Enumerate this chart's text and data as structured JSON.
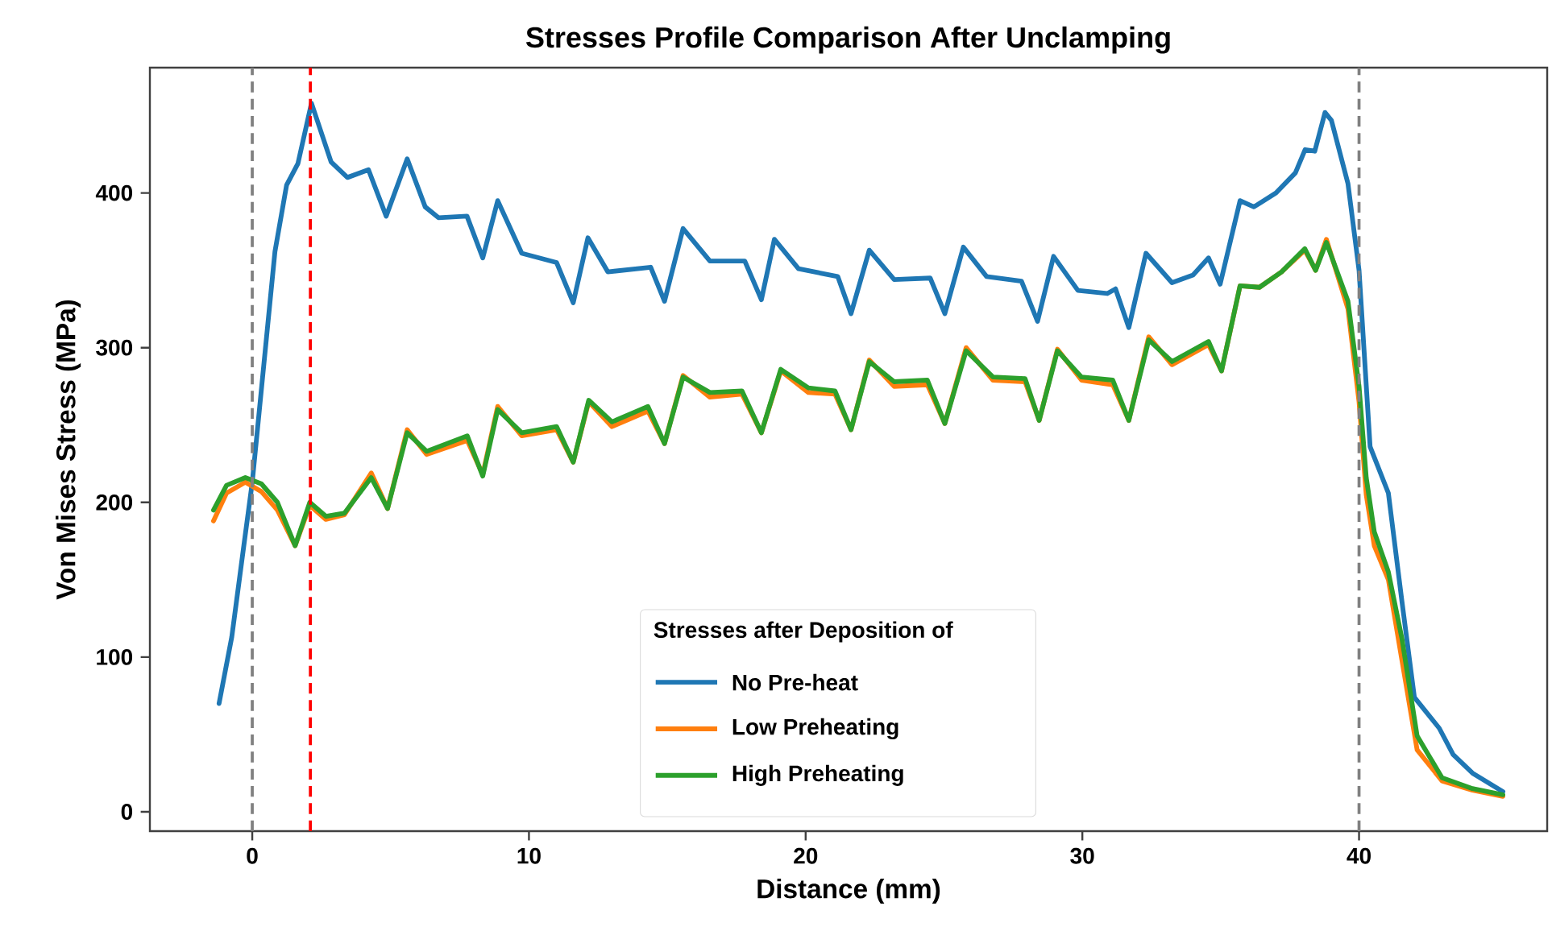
{
  "chart_data": {
    "type": "line",
    "title": "Stresses Profile Comparison After Unclamping",
    "xlabel": "Distance (mm)",
    "ylabel": "Von Mises Stress (MPa)",
    "legend_title": "Stresses after Deposition of",
    "legend": "bottom",
    "grid": false,
    "marker": "none",
    "line_style": "solid",
    "xlim": [
      -3.7,
      46.8
    ],
    "ylim": [
      -12.5,
      481
    ],
    "xticks": [
      0,
      10,
      20,
      30,
      40
    ],
    "yticks": [
      0,
      100,
      200,
      300,
      400
    ],
    "ref_lines": [
      {
        "axis": "x",
        "value": 0,
        "color": "#808080",
        "line_style": "dashed"
      },
      {
        "axis": "x",
        "value": 40,
        "color": "#808080",
        "line_style": "dashed"
      },
      {
        "axis": "x",
        "value": 2.1,
        "color": "#ff0000",
        "line_style": "dashed"
      }
    ],
    "series": [
      {
        "name": "No Pre-heat",
        "color": "#1f77b4",
        "x": [
          -1.2,
          -0.74,
          -0.29,
          0,
          0.82,
          1.24,
          1.65,
          2.14,
          2.85,
          3.44,
          4.2,
          4.84,
          5.6,
          6.25,
          6.73,
          7.76,
          8.33,
          8.87,
          9.74,
          11.0,
          11.6,
          12.13,
          12.85,
          14.4,
          14.9,
          15.57,
          16.54,
          17.8,
          18.4,
          18.87,
          19.74,
          21.16,
          21.64,
          22.3,
          23.2,
          24.5,
          25.03,
          25.7,
          26.54,
          27.8,
          28.38,
          28.96,
          29.84,
          30.9,
          31.2,
          31.68,
          32.3,
          33.24,
          34.0,
          34.56,
          34.98,
          35.7,
          36.2,
          37.0,
          37.7,
          38.05,
          38.4,
          38.77,
          39.0,
          39.6,
          40.0,
          40.4,
          41.06,
          41.55,
          42.0,
          42.9,
          43.4,
          44.1,
          45.2
        ],
        "values": [
          70,
          113,
          174,
          213,
          362,
          405,
          419,
          458,
          420,
          410,
          415,
          385,
          422,
          391,
          384,
          385,
          358,
          395,
          361,
          355,
          329,
          371,
          349,
          352,
          330,
          377,
          356,
          356,
          331,
          370,
          351,
          346,
          322,
          363,
          344,
          345,
          322,
          365,
          346,
          343,
          317,
          359,
          337,
          335,
          338,
          313,
          361,
          342,
          347,
          358,
          341,
          395,
          391,
          400,
          413,
          428,
          427,
          452,
          447,
          406,
          350,
          236,
          206,
          136,
          74,
          54,
          37,
          25,
          13
        ]
      },
      {
        "name": "Low Preheating",
        "color": "#ff7f0e",
        "x": [
          -1.4,
          -0.93,
          -0.25,
          0.33,
          0.91,
          1.55,
          2.08,
          2.66,
          3.33,
          4.3,
          4.89,
          5.6,
          6.3,
          7.77,
          8.33,
          8.87,
          9.74,
          11.0,
          11.6,
          12.16,
          13.0,
          14.3,
          14.9,
          15.57,
          16.54,
          17.7,
          18.4,
          19.1,
          20.1,
          21.06,
          21.64,
          22.3,
          23.2,
          24.4,
          25.03,
          25.8,
          26.77,
          27.93,
          28.44,
          29.1,
          29.97,
          31.1,
          31.68,
          32.4,
          33.24,
          34.56,
          35.03,
          35.7,
          36.4,
          37.2,
          38.04,
          38.43,
          38.82,
          39.6,
          40.0,
          40.26,
          40.55,
          41.06,
          41.55,
          42.1,
          43.0,
          44.1,
          45.2
        ],
        "values": [
          188,
          206,
          213,
          207,
          195,
          172,
          198,
          189,
          192,
          219,
          196,
          247,
          231,
          240,
          218,
          262,
          243,
          247,
          226,
          265,
          249,
          259,
          238,
          282,
          268,
          270,
          245,
          285,
          271,
          270,
          247,
          292,
          275,
          276,
          251,
          300,
          279,
          278,
          253,
          299,
          279,
          276,
          253,
          307,
          289,
          302,
          285,
          340,
          339,
          349,
          363,
          350,
          370,
          325,
          265,
          205,
          172,
          150,
          98,
          40,
          20,
          14,
          10
        ]
      },
      {
        "name": "High Preheating",
        "color": "#2ca02c",
        "x": [
          -1.4,
          -0.93,
          -0.25,
          0.33,
          0.91,
          1.55,
          2.08,
          2.66,
          3.33,
          4.3,
          4.89,
          5.6,
          6.3,
          7.77,
          8.33,
          8.87,
          9.74,
          11.0,
          11.6,
          12.16,
          13.0,
          14.3,
          14.9,
          15.57,
          16.54,
          17.7,
          18.4,
          19.1,
          20.1,
          21.06,
          21.64,
          22.3,
          23.2,
          24.4,
          25.03,
          25.8,
          26.77,
          27.93,
          28.44,
          29.1,
          29.97,
          31.1,
          31.68,
          32.4,
          33.24,
          34.56,
          35.03,
          35.7,
          36.4,
          37.2,
          38.04,
          38.43,
          38.82,
          39.6,
          40.0,
          40.26,
          40.55,
          41.06,
          41.55,
          42.1,
          43.0,
          44.1,
          45.2
        ],
        "values": [
          195,
          211,
          216,
          212,
          200,
          172,
          200,
          191,
          193,
          216,
          196,
          245,
          233,
          243,
          217,
          260,
          245,
          249,
          226,
          266,
          252,
          262,
          238,
          281,
          271,
          272,
          245,
          286,
          274,
          272,
          247,
          291,
          278,
          279,
          251,
          298,
          281,
          280,
          253,
          298,
          281,
          279,
          253,
          305,
          291,
          304,
          285,
          340,
          339,
          349,
          364,
          350,
          368,
          330,
          275,
          216,
          181,
          155,
          112,
          49,
          22,
          15,
          11
        ]
      }
    ]
  }
}
